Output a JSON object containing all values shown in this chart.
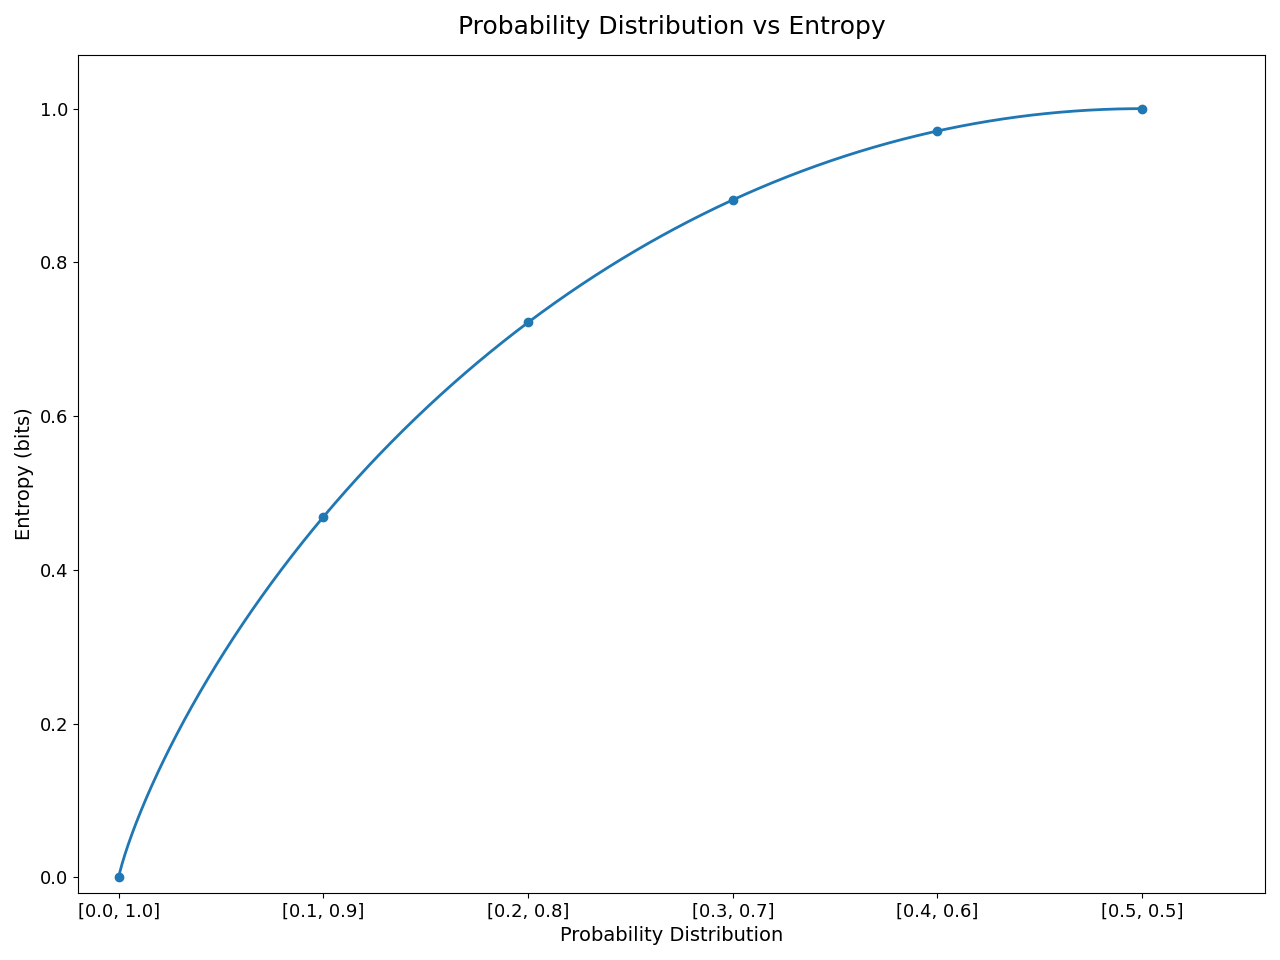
{
  "title": "Probability Distribution vs Entropy",
  "xlabel": "Probability Distribution",
  "ylabel": "Entropy (bits)",
  "x_tick_positions": [
    0.0,
    0.1,
    0.2,
    0.3,
    0.4,
    0.5
  ],
  "x_tick_labels": [
    "[0.0, 1.0]",
    "[0.1, 0.9]",
    "[0.2, 0.8]",
    "[0.3, 0.7]",
    "[0.4, 0.6]",
    "[0.5, 0.5]"
  ],
  "p_marker_values": [
    0.0,
    0.1,
    0.2,
    0.3,
    0.4,
    0.5
  ],
  "line_color": "#1f77b4",
  "marker": "o",
  "marker_size": 6,
  "linewidth": 2,
  "ylim": [
    -0.02,
    1.07
  ],
  "xlim": [
    -0.02,
    0.56
  ],
  "figsize": [
    12.8,
    9.6
  ],
  "dpi": 100,
  "title_fontsize": 18,
  "label_fontsize": 14,
  "tick_fontsize": 13
}
